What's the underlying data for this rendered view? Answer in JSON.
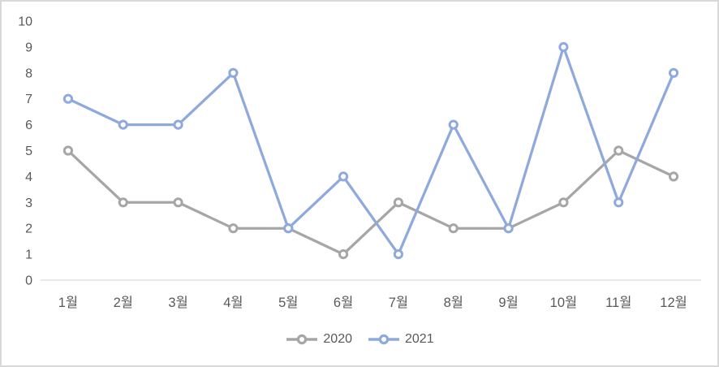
{
  "chart_data": {
    "type": "line",
    "title": "",
    "xlabel": "",
    "ylabel": "",
    "categories": [
      "1월",
      "2월",
      "3월",
      "4월",
      "5월",
      "6월",
      "7월",
      "8월",
      "9월",
      "10월",
      "11월",
      "12월"
    ],
    "series": [
      {
        "name": "2020",
        "color": "#A6A6A6",
        "values": [
          5,
          3,
          3,
          2,
          2,
          1,
          3,
          2,
          2,
          3,
          5,
          4
        ]
      },
      {
        "name": "2021",
        "color": "#8EA9DB",
        "values": [
          7,
          6,
          6,
          8,
          2,
          4,
          1,
          6,
          2,
          9,
          3,
          8
        ]
      }
    ],
    "ylim": [
      0,
      10
    ],
    "y_ticks": [
      0,
      1,
      2,
      3,
      4,
      5,
      6,
      7,
      8,
      9,
      10
    ],
    "grid": false,
    "marker": "open-circle",
    "legend_position": "bottom"
  },
  "styles": {
    "axis_line_color": "#D9D9D9",
    "label_color": "#595959",
    "frame_border_color": "#D9D9D9",
    "background": "#FFFFFF",
    "marker_fill": "#FFFFFF"
  }
}
